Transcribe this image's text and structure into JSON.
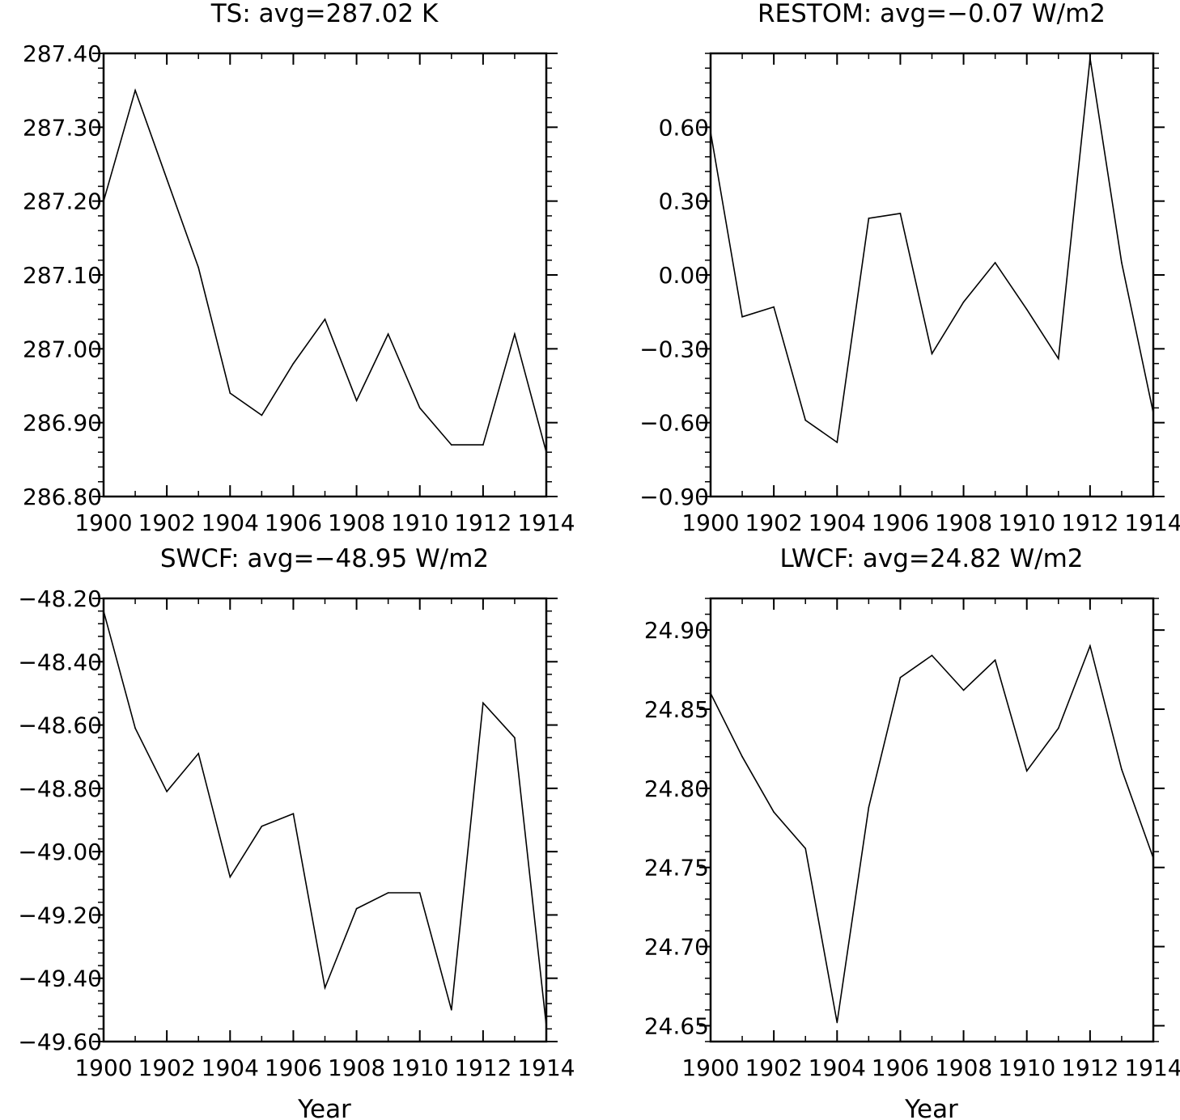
{
  "chart_data": [
    {
      "type": "line",
      "title": "TS: avg=287.02 K",
      "xlabel": "",
      "ylabel": "",
      "xlim": [
        1900,
        1914
      ],
      "ylim": [
        286.8,
        287.4
      ],
      "x_ticks": [
        "1900",
        "1902",
        "1904",
        "1906",
        "1908",
        "1910",
        "1912",
        "1914"
      ],
      "y_ticks": [
        "286.80",
        "286.90",
        "287.00",
        "287.10",
        "287.20",
        "287.30",
        "287.40"
      ],
      "x": [
        1900,
        1901,
        1902,
        1903,
        1904,
        1905,
        1906,
        1907,
        1908,
        1909,
        1910,
        1911,
        1912,
        1913,
        1914
      ],
      "values": [
        287.2,
        287.35,
        287.23,
        287.11,
        286.94,
        286.91,
        286.98,
        287.04,
        286.93,
        287.02,
        286.92,
        286.87,
        286.87,
        287.02,
        286.86
      ]
    },
    {
      "type": "line",
      "title": "RESTOM: avg=−0.07 W/m2",
      "xlabel": "",
      "ylabel": "",
      "xlim": [
        1900,
        1914
      ],
      "ylim": [
        -0.9,
        0.9
      ],
      "x_ticks": [
        "1900",
        "1902",
        "1904",
        "1906",
        "1908",
        "1910",
        "1912",
        "1914"
      ],
      "y_ticks": [
        "−0.90",
        "−0.60",
        "−0.30",
        "0.00",
        "0.30",
        "0.60"
      ],
      "x": [
        1900,
        1901,
        1902,
        1903,
        1904,
        1905,
        1906,
        1907,
        1908,
        1909,
        1910,
        1911,
        1912,
        1913,
        1914
      ],
      "values": [
        0.58,
        -0.17,
        -0.13,
        -0.59,
        -0.68,
        0.23,
        0.25,
        -0.32,
        -0.11,
        0.05,
        -0.14,
        -0.34,
        0.88,
        0.05,
        -0.56
      ]
    },
    {
      "type": "line",
      "title": "SWCF: avg=−48.95 W/m2",
      "xlabel": "Year",
      "ylabel": "",
      "xlim": [
        1900,
        1914
      ],
      "ylim": [
        -49.6,
        -48.2
      ],
      "x_ticks": [
        "1900",
        "1902",
        "1904",
        "1906",
        "1908",
        "1910",
        "1912",
        "1914"
      ],
      "y_ticks": [
        "−49.60",
        "−49.40",
        "−49.20",
        "−49.00",
        "−48.80",
        "−48.60",
        "−48.40",
        "−48.20"
      ],
      "x": [
        1900,
        1901,
        1902,
        1903,
        1904,
        1905,
        1906,
        1907,
        1908,
        1909,
        1910,
        1911,
        1912,
        1913,
        1914
      ],
      "values": [
        -48.24,
        -48.61,
        -48.81,
        -48.69,
        -49.08,
        -48.92,
        -48.88,
        -49.43,
        -49.18,
        -49.13,
        -49.13,
        -49.5,
        -48.53,
        -48.64,
        -49.55
      ]
    },
    {
      "type": "line",
      "title": "LWCF: avg=24.82 W/m2",
      "xlabel": "Year",
      "ylabel": "",
      "xlim": [
        1900,
        1914
      ],
      "ylim": [
        24.64,
        24.92
      ],
      "x_ticks": [
        "1900",
        "1902",
        "1904",
        "1906",
        "1908",
        "1910",
        "1912",
        "1914"
      ],
      "y_ticks": [
        "24.65",
        "24.70",
        "24.75",
        "24.80",
        "24.85",
        "24.90"
      ],
      "x": [
        1900,
        1901,
        1902,
        1903,
        1904,
        1905,
        1906,
        1907,
        1908,
        1909,
        1910,
        1911,
        1912,
        1913,
        1914
      ],
      "values": [
        24.86,
        24.82,
        24.785,
        24.762,
        24.652,
        24.788,
        24.87,
        24.884,
        24.862,
        24.881,
        24.811,
        24.838,
        24.89,
        24.812,
        24.756
      ]
    }
  ]
}
